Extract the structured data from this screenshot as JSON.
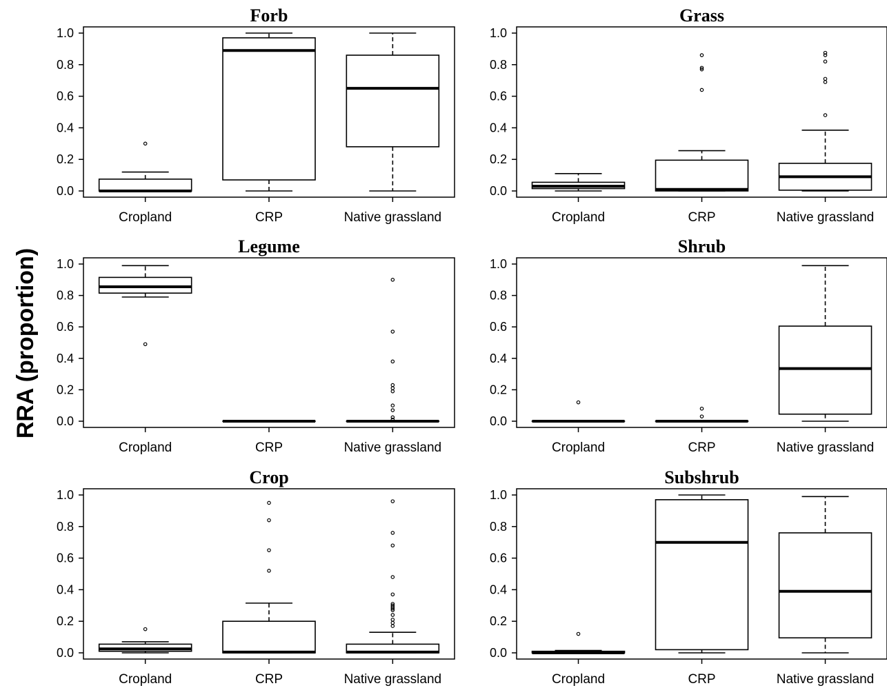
{
  "figure": {
    "ylabel": "RRA (proportion)"
  },
  "chart_data": [
    {
      "type": "box",
      "title": "Forb",
      "categories": [
        "Cropland",
        "CRP",
        "Native grassland"
      ],
      "yticks": [
        "0.0",
        "0.2",
        "0.4",
        "0.6",
        "0.8",
        "1.0"
      ],
      "ylim": [
        0,
        1
      ],
      "boxes": [
        {
          "category": "Cropland",
          "whisker_low": 0.0,
          "q1": 0.0,
          "median": 0.0,
          "q3": 0.075,
          "whisker_high": 0.12,
          "outliers": [
            0.3
          ]
        },
        {
          "category": "CRP",
          "whisker_low": 0.0,
          "q1": 0.07,
          "median": 0.89,
          "q3": 0.97,
          "whisker_high": 1.0,
          "outliers": []
        },
        {
          "category": "Native grassland",
          "whisker_low": 0.0,
          "q1": 0.28,
          "median": 0.65,
          "q3": 0.86,
          "whisker_high": 1.0,
          "outliers": []
        }
      ]
    },
    {
      "type": "box",
      "title": "Grass",
      "categories": [
        "Cropland",
        "CRP",
        "Native grassland"
      ],
      "yticks": [
        "0.0",
        "0.2",
        "0.4",
        "0.6",
        "0.8",
        "1.0"
      ],
      "ylim": [
        0,
        1
      ],
      "boxes": [
        {
          "category": "Cropland",
          "whisker_low": 0.0,
          "q1": 0.015,
          "median": 0.03,
          "q3": 0.055,
          "whisker_high": 0.11,
          "outliers": []
        },
        {
          "category": "CRP",
          "whisker_low": 0.0,
          "q1": 0.0,
          "median": 0.01,
          "q3": 0.195,
          "whisker_high": 0.255,
          "outliers": [
            0.64,
            0.77,
            0.78,
            0.86
          ]
        },
        {
          "category": "Native grassland",
          "whisker_low": 0.0,
          "q1": 0.005,
          "median": 0.09,
          "q3": 0.175,
          "whisker_high": 0.385,
          "outliers": [
            0.48,
            0.69,
            0.71,
            0.82,
            0.86,
            0.875
          ]
        }
      ]
    },
    {
      "type": "box",
      "title": "Legume",
      "categories": [
        "Cropland",
        "CRP",
        "Native grassland"
      ],
      "yticks": [
        "0.0",
        "0.2",
        "0.4",
        "0.6",
        "0.8",
        "1.0"
      ],
      "ylim": [
        0,
        1
      ],
      "boxes": [
        {
          "category": "Cropland",
          "whisker_low": 0.79,
          "q1": 0.815,
          "median": 0.855,
          "q3": 0.915,
          "whisker_high": 0.99,
          "outliers": [
            0.49
          ]
        },
        {
          "category": "CRP",
          "whisker_low": 0.0,
          "q1": 0.0,
          "median": 0.0,
          "q3": 0.0,
          "whisker_high": 0.0,
          "outliers": []
        },
        {
          "category": "Native grassland",
          "whisker_low": 0.0,
          "q1": 0.0,
          "median": 0.0,
          "q3": 0.0,
          "whisker_high": 0.0,
          "outliers": [
            0.01,
            0.025,
            0.07,
            0.1,
            0.19,
            0.21,
            0.23,
            0.38,
            0.57,
            0.9
          ]
        }
      ]
    },
    {
      "type": "box",
      "title": "Shrub",
      "categories": [
        "Cropland",
        "CRP",
        "Native grassland"
      ],
      "yticks": [
        "0.0",
        "0.2",
        "0.4",
        "0.6",
        "0.8",
        "1.0"
      ],
      "ylim": [
        0,
        1
      ],
      "boxes": [
        {
          "category": "Cropland",
          "whisker_low": 0.0,
          "q1": 0.0,
          "median": 0.0,
          "q3": 0.0,
          "whisker_high": 0.0,
          "outliers": [
            0.12
          ]
        },
        {
          "category": "CRP",
          "whisker_low": 0.0,
          "q1": 0.0,
          "median": 0.0,
          "q3": 0.0,
          "whisker_high": 0.0,
          "outliers": [
            0.03,
            0.08
          ]
        },
        {
          "category": "Native grassland",
          "whisker_low": 0.0,
          "q1": 0.045,
          "median": 0.335,
          "q3": 0.605,
          "whisker_high": 0.99,
          "outliers": []
        }
      ]
    },
    {
      "type": "box",
      "title": "Crop",
      "categories": [
        "Cropland",
        "CRP",
        "Native grassland"
      ],
      "yticks": [
        "0.0",
        "0.2",
        "0.4",
        "0.6",
        "0.8",
        "1.0"
      ],
      "ylim": [
        0,
        1
      ],
      "boxes": [
        {
          "category": "Cropland",
          "whisker_low": 0.0,
          "q1": 0.01,
          "median": 0.025,
          "q3": 0.055,
          "whisker_high": 0.07,
          "outliers": [
            0.15
          ]
        },
        {
          "category": "CRP",
          "whisker_low": 0.0,
          "q1": 0.0,
          "median": 0.005,
          "q3": 0.2,
          "whisker_high": 0.315,
          "outliers": [
            0.52,
            0.65,
            0.84,
            0.95
          ]
        },
        {
          "category": "Native grassland",
          "whisker_low": 0.0,
          "q1": 0.0,
          "median": 0.005,
          "q3": 0.055,
          "whisker_high": 0.13,
          "outliers": [
            0.17,
            0.19,
            0.21,
            0.24,
            0.27,
            0.28,
            0.29,
            0.3,
            0.31,
            0.37,
            0.48,
            0.68,
            0.76,
            0.96
          ]
        }
      ]
    },
    {
      "type": "box",
      "title": "Subshrub",
      "categories": [
        "Cropland",
        "CRP",
        "Native grassland"
      ],
      "yticks": [
        "0.0",
        "0.2",
        "0.4",
        "0.6",
        "0.8",
        "1.0"
      ],
      "ylim": [
        0,
        1
      ],
      "boxes": [
        {
          "category": "Cropland",
          "whisker_low": 0.0,
          "q1": 0.0,
          "median": 0.0,
          "q3": 0.01,
          "whisker_high": 0.015,
          "outliers": [
            0.12
          ]
        },
        {
          "category": "CRP",
          "whisker_low": 0.0,
          "q1": 0.02,
          "median": 0.7,
          "q3": 0.97,
          "whisker_high": 1.0,
          "outliers": []
        },
        {
          "category": "Native grassland",
          "whisker_low": 0.0,
          "q1": 0.095,
          "median": 0.39,
          "q3": 0.76,
          "whisker_high": 0.99,
          "outliers": []
        }
      ]
    }
  ]
}
